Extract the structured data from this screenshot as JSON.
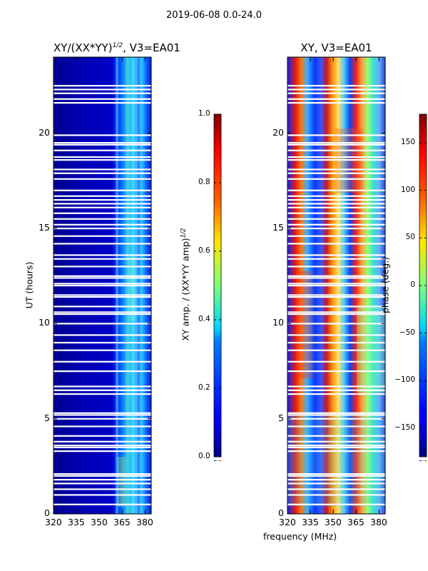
{
  "suptitle": "2019-06-08 0.0-24.0",
  "chart_data": [
    {
      "type": "heatmap",
      "title_main": "XY/(XX*YY)",
      "title_sup": "1/2",
      "title_rest": ", V3=EA01",
      "xlabel": "frequency (MHz)",
      "ylabel": "UT (hours)",
      "x_ticks": [
        "320",
        "335",
        "350",
        "365",
        "380"
      ],
      "y_ticks": [
        "0",
        "5",
        "10",
        "15",
        "20"
      ],
      "xlim": [
        320,
        384
      ],
      "ylim": [
        0,
        24
      ],
      "colorbar": {
        "label_main": "XY amp. / (XX*YY amp)",
        "label_sup": "1/2",
        "range": [
          0.0,
          1.0
        ],
        "ticks": [
          "0.0",
          "0.2",
          "0.4",
          "0.6",
          "0.8",
          "1.0"
        ]
      },
      "colormap": "jet"
    },
    {
      "type": "heatmap",
      "title": "XY, V3=EA01",
      "xlabel": "frequency (MHz)",
      "x_ticks": [
        "320",
        "335",
        "350",
        "365",
        "380"
      ],
      "y_ticks": [
        "0",
        "5",
        "10",
        "15",
        "20"
      ],
      "xlim": [
        320,
        384
      ],
      "ylim": [
        0,
        24
      ],
      "colorbar": {
        "label": "phase (deg.)",
        "range": [
          -180,
          180
        ],
        "ticks": [
          "−150",
          "−100",
          "−50",
          "0",
          "50",
          "100",
          "150"
        ]
      },
      "colormap": "jet"
    }
  ],
  "flagged_ut_hours": [
    0.5,
    1.0,
    1.3,
    1.6,
    1.8,
    2.0,
    2.1,
    3.3,
    3.5,
    3.6,
    3.8,
    4.1,
    4.6,
    5.0,
    5.2,
    5.3,
    6.3,
    6.5,
    6.7,
    7.5,
    8.0,
    8.6,
    9.0,
    9.4,
    10.0,
    10.5,
    10.6,
    10.9,
    11.4,
    11.5,
    12.0,
    12.1,
    12.4,
    12.5,
    13.0,
    13.4,
    13.6,
    14.2,
    14.6,
    15.0,
    15.2,
    15.5,
    15.8,
    16.1,
    16.3,
    16.5,
    16.7,
    17.0,
    17.6,
    17.9,
    18.1,
    18.6,
    18.75,
    19.1,
    19.4,
    19.5,
    19.9,
    21.6,
    21.8,
    22.1,
    22.3,
    22.5
  ],
  "xlabel_shared": "frequency (MHz)"
}
